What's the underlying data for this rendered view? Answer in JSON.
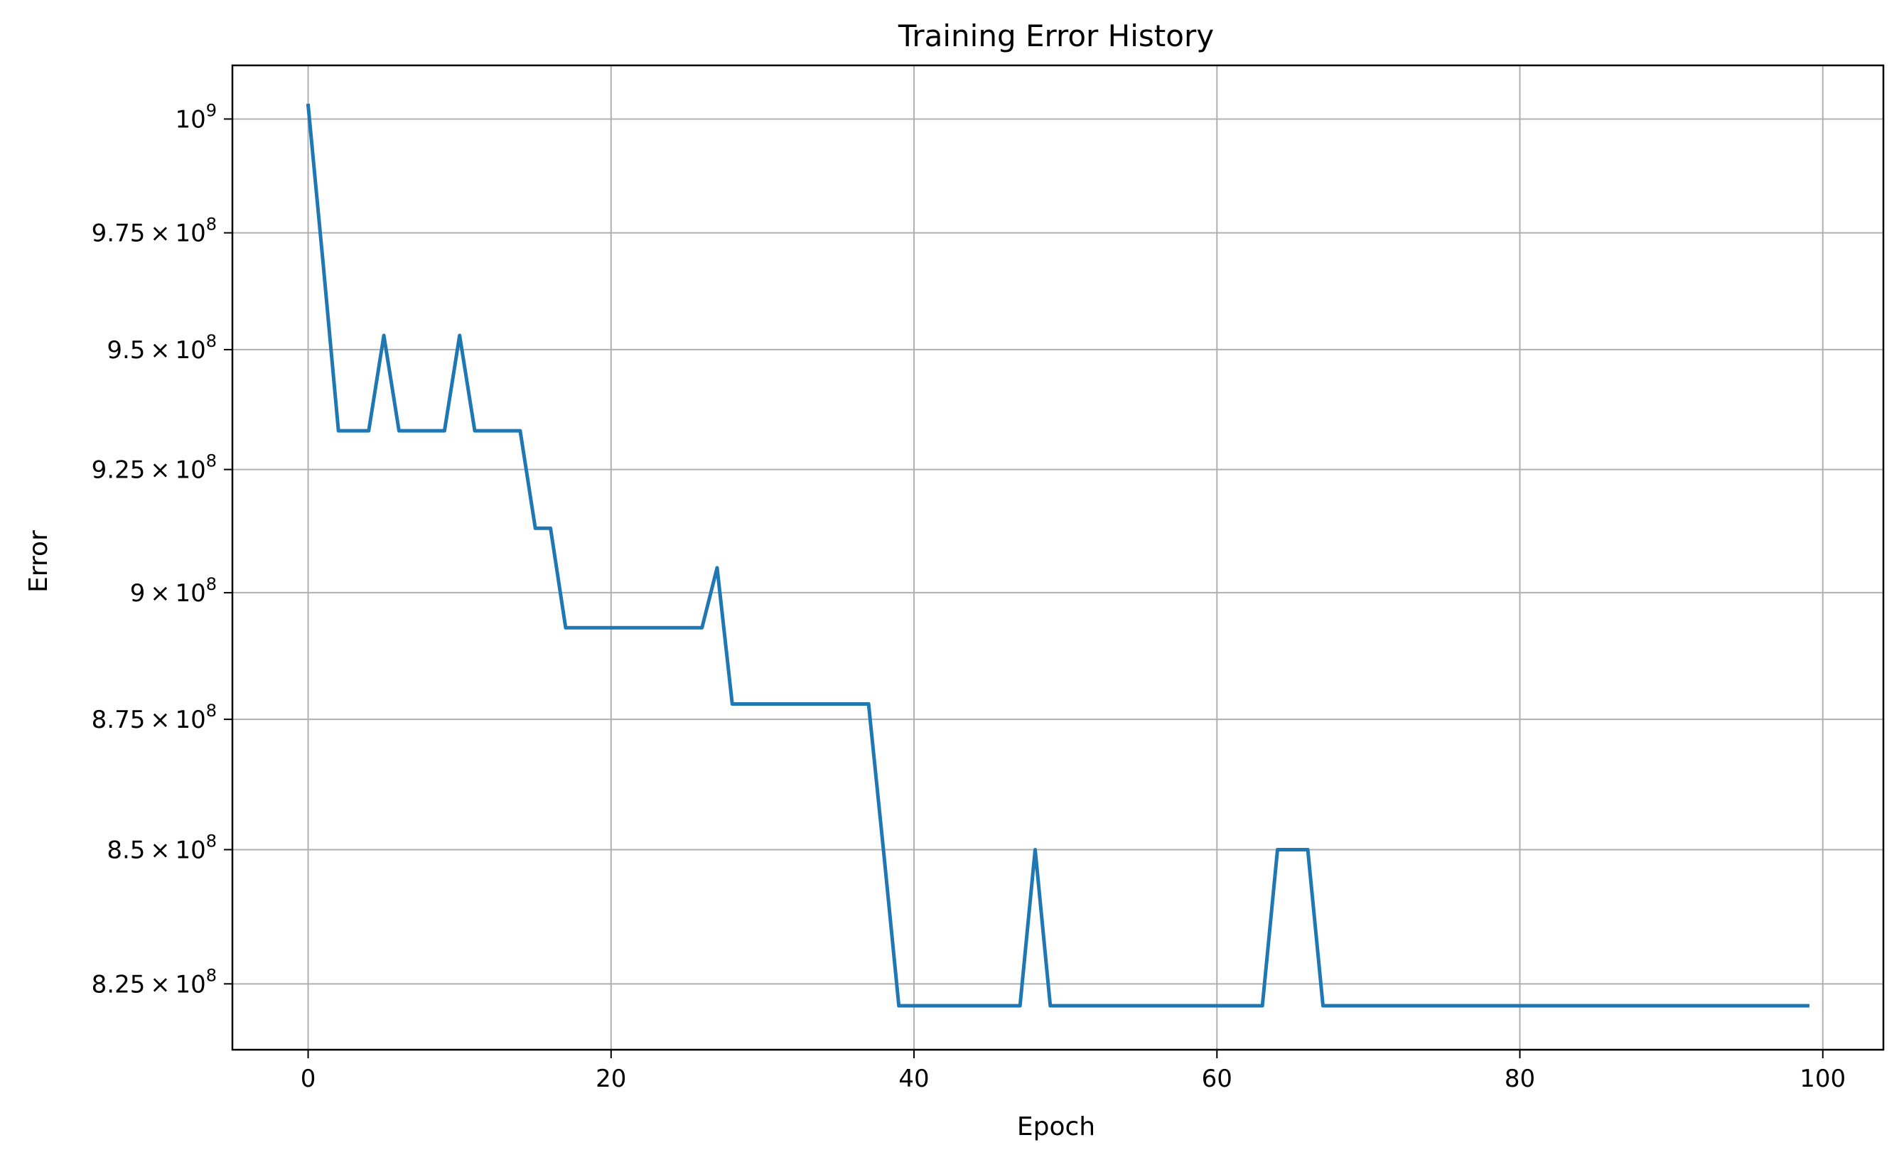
{
  "chart_data": {
    "type": "line",
    "title": "Training Error History",
    "xlabel": "Epoch",
    "ylabel": "Error",
    "xlim": [
      -5,
      104
    ],
    "ylim": [
      813000000,
      1012000000
    ],
    "yscale": "log",
    "grid": true,
    "x_ticks": [
      0,
      20,
      40,
      60,
      80,
      100
    ],
    "x_tick_labels": [
      "0",
      "20",
      "40",
      "60",
      "80",
      "100"
    ],
    "y_ticks": [
      {
        "value": 825000000,
        "mantissa": "8.25",
        "exponent": "8"
      },
      {
        "value": 850000000,
        "mantissa": "8.5",
        "exponent": "8"
      },
      {
        "value": 875000000,
        "mantissa": "8.75",
        "exponent": "8"
      },
      {
        "value": 900000000,
        "mantissa": "9",
        "exponent": "8"
      },
      {
        "value": 925000000,
        "mantissa": "9.25",
        "exponent": "8"
      },
      {
        "value": 950000000,
        "mantissa": "9.5",
        "exponent": "8"
      },
      {
        "value": 975000000,
        "mantissa": "9.75",
        "exponent": "8"
      },
      {
        "value": 1000000000,
        "mantissa": "",
        "exponent": "9"
      }
    ],
    "y_tick_base": "10",
    "y_tick_times": "×",
    "series": [
      {
        "color": "#1f77b4",
        "x": [
          0,
          1,
          2,
          3,
          4,
          5,
          6,
          7,
          8,
          9,
          10,
          11,
          12,
          13,
          14,
          15,
          16,
          17,
          18,
          19,
          20,
          21,
          22,
          23,
          24,
          25,
          26,
          27,
          28,
          29,
          30,
          31,
          32,
          33,
          34,
          35,
          36,
          37,
          38,
          39,
          40,
          41,
          42,
          43,
          44,
          45,
          46,
          47,
          48,
          49,
          50,
          51,
          52,
          53,
          54,
          55,
          56,
          57,
          58,
          59,
          60,
          61,
          62,
          63,
          64,
          65,
          66,
          67,
          68,
          69,
          70,
          71,
          72,
          73,
          74,
          75,
          76,
          77,
          78,
          79,
          80,
          81,
          82,
          83,
          84,
          85,
          86,
          87,
          88,
          89,
          90,
          91,
          92,
          93,
          94,
          95,
          96,
          97,
          98,
          99
        ],
        "values": [
          1003000000,
          968000000,
          933000000,
          933000000,
          933000000,
          953000000,
          933000000,
          933000000,
          933000000,
          933000000,
          953000000,
          933000000,
          933000000,
          933000000,
          933000000,
          913000000,
          913000000,
          893000000,
          893000000,
          893000000,
          893000000,
          893000000,
          893000000,
          893000000,
          893000000,
          893000000,
          893000000,
          905000000,
          878000000,
          878000000,
          878000000,
          878000000,
          878000000,
          878000000,
          878000000,
          878000000,
          878000000,
          878000000,
          849500000,
          821000000,
          821000000,
          821000000,
          821000000,
          821000000,
          821000000,
          821000000,
          821000000,
          821000000,
          850000000,
          821000000,
          821000000,
          821000000,
          821000000,
          821000000,
          821000000,
          821000000,
          821000000,
          821000000,
          821000000,
          821000000,
          821000000,
          821000000,
          821000000,
          821000000,
          850000000,
          850000000,
          850000000,
          821000000,
          821000000,
          821000000,
          821000000,
          821000000,
          821000000,
          821000000,
          821000000,
          821000000,
          821000000,
          821000000,
          821000000,
          821000000,
          821000000,
          821000000,
          821000000,
          821000000,
          821000000,
          821000000,
          821000000,
          821000000,
          821000000,
          821000000,
          821000000,
          821000000,
          821000000,
          821000000,
          821000000,
          821000000,
          821000000,
          821000000,
          821000000,
          821000000
        ]
      }
    ]
  }
}
